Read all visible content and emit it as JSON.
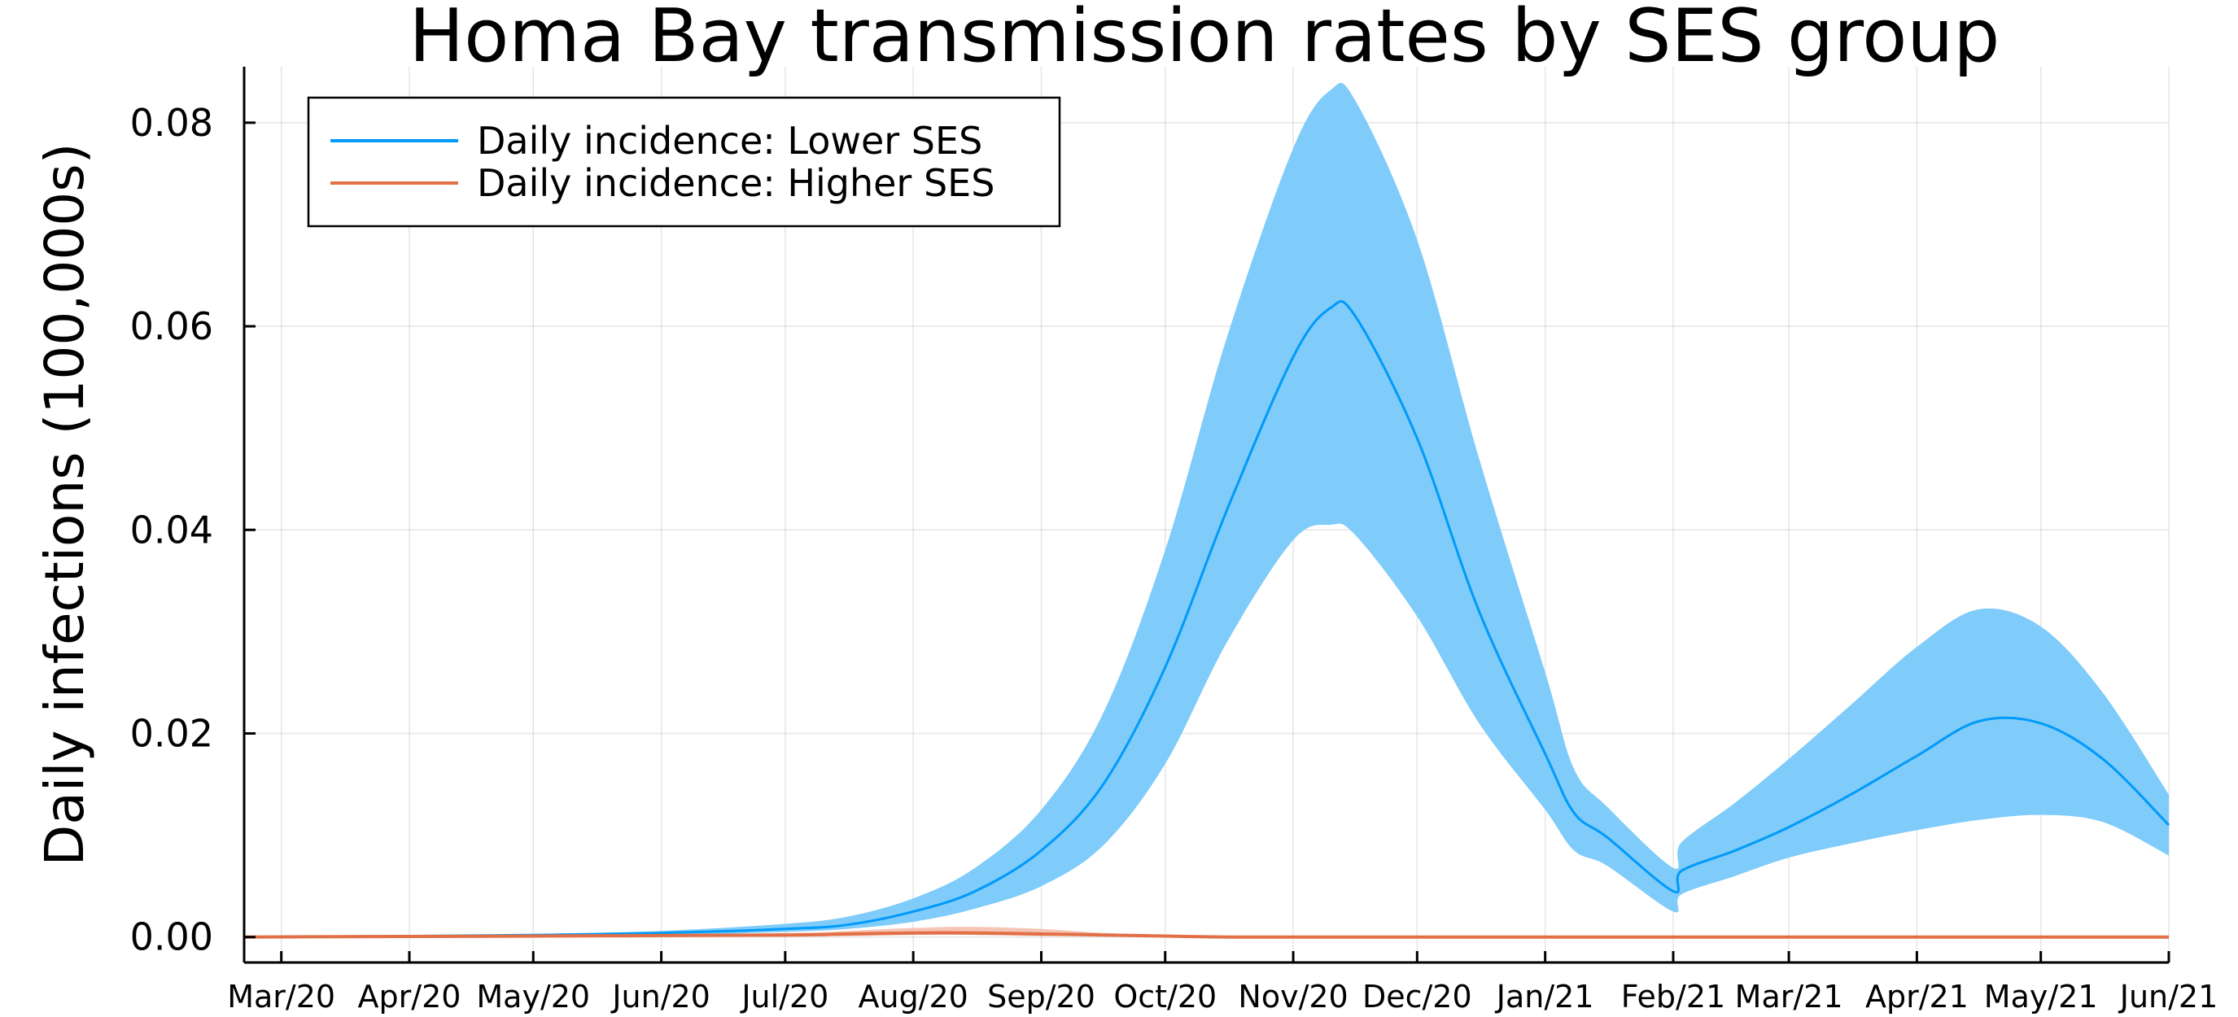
{
  "chart_data": {
    "type": "line",
    "title": "Homa Bay transmission rates by SES group",
    "xlabel": "",
    "ylabel": "Daily infections (100,000s)",
    "x_ticks": [
      "Mar/20",
      "Apr/20",
      "May/20",
      "Jun/20",
      "Jul/20",
      "Aug/20",
      "Sep/20",
      "Oct/20",
      "Nov/20",
      "Dec/20",
      "Jan/21",
      "Feb/21",
      "Mar/21",
      "Apr/21",
      "May/21",
      "Jun/21"
    ],
    "y_ticks": [
      "0.00",
      "0.02",
      "0.04",
      "0.06",
      "0.08"
    ],
    "ylim": [
      -0.0025,
      0.0855
    ],
    "xlim": [
      "2020-02-21",
      "2021-06-01"
    ],
    "grid": true,
    "legend_position": "top-left",
    "series": [
      {
        "name": "Daily incidence: Lower SES",
        "color": "#009AFA",
        "band_color": "#7FCBFA",
        "x": [
          "2020-02-21",
          "2020-04-01",
          "2020-05-01",
          "2020-06-01",
          "2020-07-01",
          "2020-07-16",
          "2020-08-01",
          "2020-08-16",
          "2020-09-01",
          "2020-09-16",
          "2020-10-01",
          "2020-10-16",
          "2020-11-01",
          "2020-11-10",
          "2020-11-16",
          "2020-12-01",
          "2020-12-16",
          "2021-01-01",
          "2021-01-08",
          "2021-01-16",
          "2021-02-01",
          "2021-02-03",
          "2021-02-16",
          "2021-03-01",
          "2021-03-16",
          "2021-04-01",
          "2021-04-16",
          "2021-05-01",
          "2021-05-16",
          "2021-06-01"
        ],
        "values": [
          0.0,
          0.0001,
          0.0002,
          0.0004,
          0.0008,
          0.0012,
          0.0025,
          0.0045,
          0.0085,
          0.015,
          0.0265,
          0.042,
          0.057,
          0.0618,
          0.061,
          0.049,
          0.032,
          0.018,
          0.0122,
          0.0098,
          0.0045,
          0.0065,
          0.0085,
          0.0108,
          0.014,
          0.0178,
          0.0212,
          0.021,
          0.0175,
          0.011
        ],
        "lower": [
          0.0,
          0.0001,
          0.0001,
          0.0002,
          0.0005,
          0.0008,
          0.0015,
          0.0028,
          0.005,
          0.009,
          0.017,
          0.029,
          0.039,
          0.0405,
          0.0395,
          0.0315,
          0.021,
          0.0125,
          0.0085,
          0.007,
          0.0025,
          0.0042,
          0.006,
          0.0078,
          0.0092,
          0.0105,
          0.0115,
          0.012,
          0.0113,
          0.008
        ],
        "upper": [
          0.0,
          0.0001,
          0.0003,
          0.0006,
          0.0013,
          0.002,
          0.0038,
          0.0068,
          0.0125,
          0.022,
          0.038,
          0.059,
          0.0775,
          0.0832,
          0.0822,
          0.0685,
          0.047,
          0.026,
          0.0165,
          0.0128,
          0.0068,
          0.0093,
          0.0132,
          0.0175,
          0.0228,
          0.0285,
          0.0322,
          0.0305,
          0.024,
          0.014
        ]
      },
      {
        "name": "Daily incidence: Higher SES",
        "color": "#E26F46",
        "band_color": "#F2B7A2",
        "x": [
          "2020-02-21",
          "2020-05-01",
          "2020-07-01",
          "2020-07-16",
          "2020-08-01",
          "2020-08-16",
          "2020-09-01",
          "2020-09-16",
          "2020-10-01",
          "2020-10-16",
          "2020-11-01",
          "2021-02-01",
          "2021-06-01"
        ],
        "values": [
          0.0,
          0.0001,
          0.0002,
          0.0003,
          0.0004,
          0.0004,
          0.0003,
          0.0002,
          0.0001,
          0.0,
          0.0,
          0.0,
          0.0
        ],
        "lower": [
          0.0,
          0.0,
          0.0001,
          0.0001,
          0.0002,
          0.0002,
          0.0001,
          0.0001,
          0.0,
          0.0,
          0.0,
          0.0,
          0.0
        ],
        "upper": [
          0.0,
          0.0001,
          0.0004,
          0.0006,
          0.0009,
          0.001,
          0.0008,
          0.0004,
          0.0002,
          0.0,
          0.0,
          0.0,
          0.0
        ]
      }
    ]
  }
}
